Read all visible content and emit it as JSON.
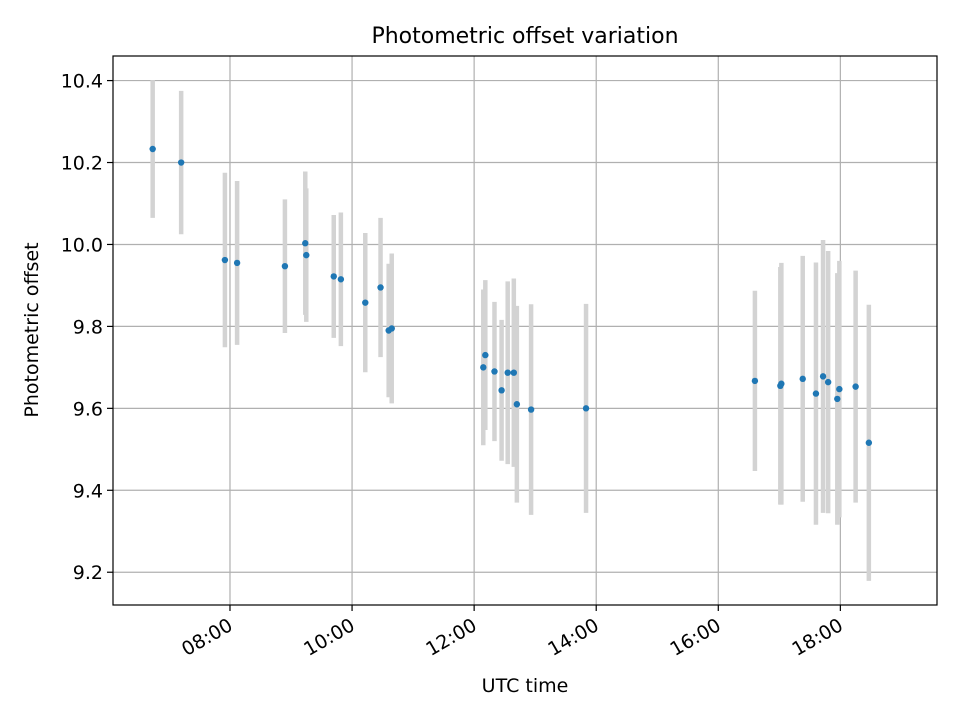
{
  "chart_data": {
    "type": "scatter",
    "title": "Photometric offset variation",
    "xlabel": "UTC time",
    "ylabel": "Photometric offset",
    "x_ticks": [
      "08:00",
      "10:00",
      "12:00",
      "14:00",
      "16:00",
      "18:00"
    ],
    "y_ticks": [
      "9.2",
      "9.4",
      "9.6",
      "9.8",
      "10.0",
      "10.2",
      "10.4"
    ],
    "xlim": [
      "06:05",
      "19:35"
    ],
    "ylim": [
      9.12,
      10.46
    ],
    "grid": true,
    "marker_color": "#1f77b4",
    "errorbar_color": "#d3d3d3",
    "points": [
      {
        "t": "06:44",
        "y": 10.233,
        "err": 0.168
      },
      {
        "t": "07:12",
        "y": 10.2,
        "err": 0.175
      },
      {
        "t": "07:55",
        "y": 9.962,
        "err": 0.213
      },
      {
        "t": "08:07",
        "y": 9.955,
        "err": 0.2
      },
      {
        "t": "08:54",
        "y": 9.947,
        "err": 0.163
      },
      {
        "t": "09:14",
        "y": 10.003,
        "err": 0.175
      },
      {
        "t": "09:15",
        "y": 9.974,
        "err": 0.163
      },
      {
        "t": "09:42",
        "y": 9.922,
        "err": 0.15
      },
      {
        "t": "09:49",
        "y": 9.915,
        "err": 0.163
      },
      {
        "t": "10:13",
        "y": 9.858,
        "err": 0.17
      },
      {
        "t": "10:28",
        "y": 9.895,
        "err": 0.17
      },
      {
        "t": "10:36",
        "y": 9.79,
        "err": 0.163
      },
      {
        "t": "10:39",
        "y": 9.795,
        "err": 0.183
      },
      {
        "t": "12:09",
        "y": 9.7,
        "err": 0.19
      },
      {
        "t": "12:11",
        "y": 9.73,
        "err": 0.183
      },
      {
        "t": "12:20",
        "y": 9.69,
        "err": 0.17
      },
      {
        "t": "12:27",
        "y": 9.644,
        "err": 0.172
      },
      {
        "t": "12:33",
        "y": 9.687,
        "err": 0.223
      },
      {
        "t": "12:39",
        "y": 9.687,
        "err": 0.23
      },
      {
        "t": "12:42",
        "y": 9.61,
        "err": 0.24
      },
      {
        "t": "12:56",
        "y": 9.597,
        "err": 0.257
      },
      {
        "t": "13:50",
        "y": 9.6,
        "err": 0.255
      },
      {
        "t": "16:36",
        "y": 9.667,
        "err": 0.22
      },
      {
        "t": "17:01",
        "y": 9.655,
        "err": 0.29
      },
      {
        "t": "17:02",
        "y": 9.66,
        "err": 0.295
      },
      {
        "t": "17:23",
        "y": 9.672,
        "err": 0.3
      },
      {
        "t": "17:36",
        "y": 9.636,
        "err": 0.32
      },
      {
        "t": "17:43",
        "y": 9.678,
        "err": 0.333
      },
      {
        "t": "17:48",
        "y": 9.664,
        "err": 0.32
      },
      {
        "t": "17:57",
        "y": 9.623,
        "err": 0.307
      },
      {
        "t": "17:59",
        "y": 9.647,
        "err": 0.313
      },
      {
        "t": "18:15",
        "y": 9.653,
        "err": 0.283
      },
      {
        "t": "18:28",
        "y": 9.516,
        "err": 0.337
      }
    ]
  }
}
